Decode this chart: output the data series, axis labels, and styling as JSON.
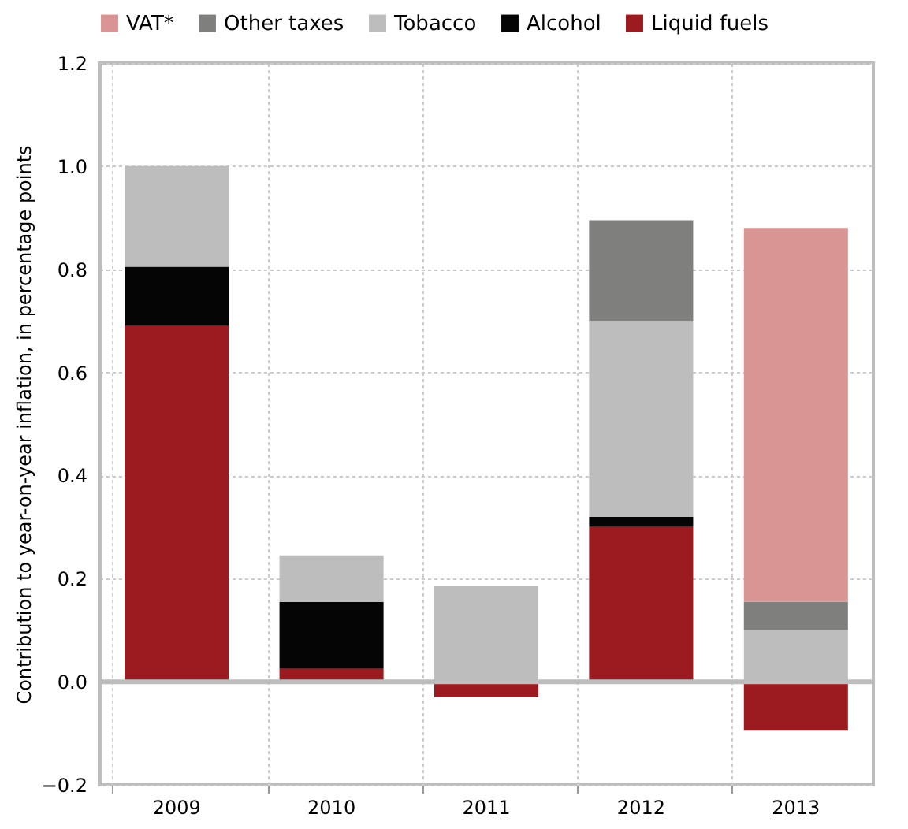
{
  "chart_data": {
    "type": "bar",
    "stacked": true,
    "ylabel": "Contribution to year-on-year inflation, in percentage points",
    "categories": [
      "2009",
      "2010",
      "2011",
      "2012",
      "2013"
    ],
    "series": [
      {
        "name": "Liquid fuels",
        "color": "#9b1b20",
        "values": [
          0.69,
          0.025,
          -0.03,
          0.3,
          -0.095
        ]
      },
      {
        "name": "Alcohol",
        "color": "#050505",
        "values": [
          0.115,
          0.13,
          null,
          0.02,
          null
        ]
      },
      {
        "name": "Tobacco",
        "color": "#bdbdbd",
        "values": [
          0.195,
          0.09,
          0.185,
          0.38,
          0.1
        ]
      },
      {
        "name": "Other taxes",
        "color": "#7f7f7d",
        "values": [
          null,
          null,
          null,
          0.195,
          0.055
        ]
      },
      {
        "name": "VAT*",
        "color": "#d99594",
        "values": [
          null,
          null,
          null,
          null,
          0.725
        ]
      }
    ],
    "ylim": [
      -0.2,
      1.2
    ],
    "yticks": [
      -0.2,
      {
        "value": 0,
        "label": "0.0"
      },
      0.2,
      0.4,
      0.6,
      0.8,
      {
        "value": 1,
        "label": "1.0"
      },
      1.2
    ],
    "grid": true,
    "legend": "top",
    "ref_lines": [
      {
        "axis": "y",
        "value": 0,
        "color": "#bdbdbd"
      }
    ]
  }
}
